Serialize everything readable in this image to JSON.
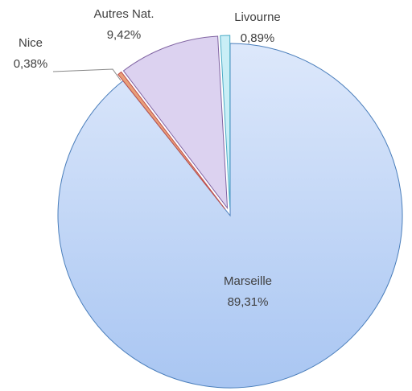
{
  "chart_data": {
    "type": "pie",
    "categories": [
      "Marseille",
      "Nice",
      "Autres Nat.",
      "Livourne"
    ],
    "values": [
      89.31,
      0.38,
      9.42,
      0.89
    ],
    "value_labels": [
      "89,31%",
      "0,38%",
      "9,42%",
      "0,89%"
    ],
    "colors": [
      "#c6d9f7",
      "#e8a07a",
      "#dcd2f0",
      "#c9eef6"
    ]
  }
}
